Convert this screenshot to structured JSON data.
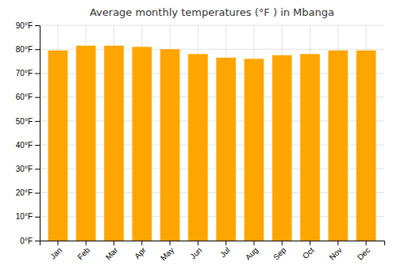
{
  "chart_data": {
    "type": "bar",
    "title": "Average monthly temperatures (°F ) in Mbanga",
    "categories": [
      "Jan",
      "Feb",
      "Mar",
      "Apr",
      "May",
      "Jun",
      "Jul",
      "Aug",
      "Sep",
      "Oct",
      "Nov",
      "Dec"
    ],
    "values": [
      79.5,
      81.5,
      81.5,
      81.0,
      80.0,
      78.0,
      76.5,
      76.0,
      77.5,
      78.0,
      79.5,
      79.5
    ],
    "color": "#FFA500",
    "ylim": [
      0,
      90
    ],
    "yticks": [
      {
        "value": 0,
        "label": "0°F"
      },
      {
        "value": 10,
        "label": "10°F"
      },
      {
        "value": 20,
        "label": "20°F"
      },
      {
        "value": 30,
        "label": "30°F"
      },
      {
        "value": 40,
        "label": "40°F"
      },
      {
        "value": 50,
        "label": "50°F"
      },
      {
        "value": 60,
        "label": "60°F"
      },
      {
        "value": 70,
        "label": "70°F"
      },
      {
        "value": 80,
        "label": "80°F"
      },
      {
        "value": 90,
        "label": "90°F"
      }
    ],
    "grid": true
  }
}
